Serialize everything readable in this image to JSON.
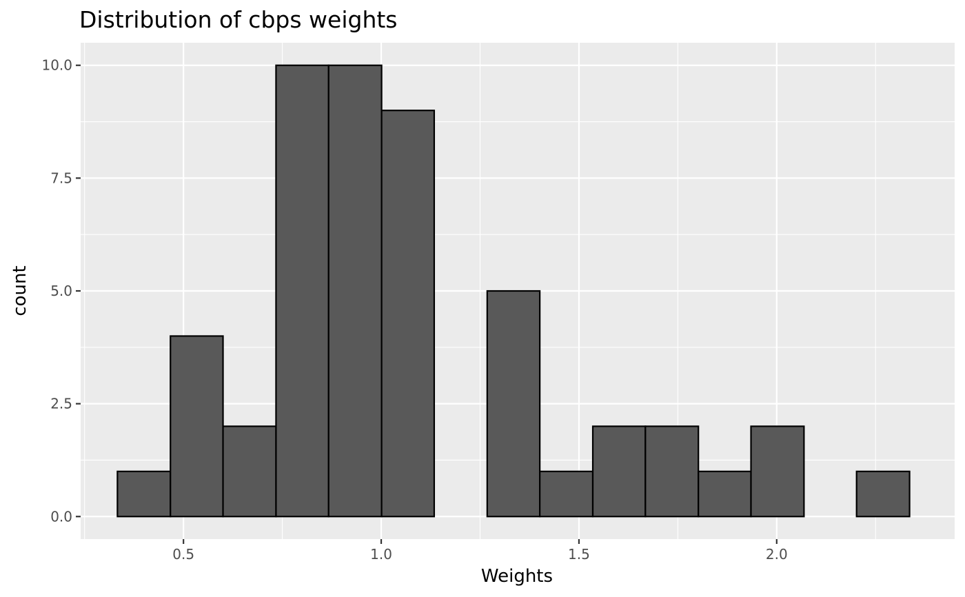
{
  "chart_data": {
    "type": "bar",
    "subtype": "histogram",
    "title": "Distribution of cbps weights",
    "xlabel": "Weights",
    "ylabel": "count",
    "xlim": [
      0.24,
      2.45
    ],
    "ylim": [
      -0.5,
      10.5
    ],
    "bin_width": 0.1335,
    "bins": [
      {
        "start": 0.333,
        "end": 0.467,
        "count": 1
      },
      {
        "start": 0.467,
        "end": 0.6,
        "count": 4
      },
      {
        "start": 0.6,
        "end": 0.734,
        "count": 2
      },
      {
        "start": 0.734,
        "end": 0.867,
        "count": 10
      },
      {
        "start": 0.867,
        "end": 1.001,
        "count": 10
      },
      {
        "start": 1.001,
        "end": 1.134,
        "count": 9
      },
      {
        "start": 1.134,
        "end": 1.268,
        "count": 0
      },
      {
        "start": 1.268,
        "end": 1.401,
        "count": 5
      },
      {
        "start": 1.401,
        "end": 1.535,
        "count": 1
      },
      {
        "start": 1.535,
        "end": 1.668,
        "count": 2
      },
      {
        "start": 1.668,
        "end": 1.802,
        "count": 2
      },
      {
        "start": 1.802,
        "end": 1.935,
        "count": 1
      },
      {
        "start": 1.935,
        "end": 2.069,
        "count": 2
      },
      {
        "start": 2.069,
        "end": 2.202,
        "count": 0
      },
      {
        "start": 2.202,
        "end": 2.336,
        "count": 1
      }
    ],
    "x_ticks": [
      0.5,
      1.0,
      1.5,
      2.0
    ],
    "x_tick_labels": [
      "0.5",
      "1.0",
      "1.5",
      "2.0"
    ],
    "y_ticks": [
      0,
      2.5,
      5,
      7.5,
      10
    ],
    "y_tick_labels": [
      "0.0",
      "2.5",
      "5.0",
      "7.5",
      "10.0"
    ],
    "grid": true,
    "legend": "none",
    "colors": {
      "panel": "#ebebeb",
      "grid": "#ffffff",
      "bar_fill": "#595959",
      "bar_stroke": "#000000",
      "tick_text": "#4d4d4d"
    }
  }
}
